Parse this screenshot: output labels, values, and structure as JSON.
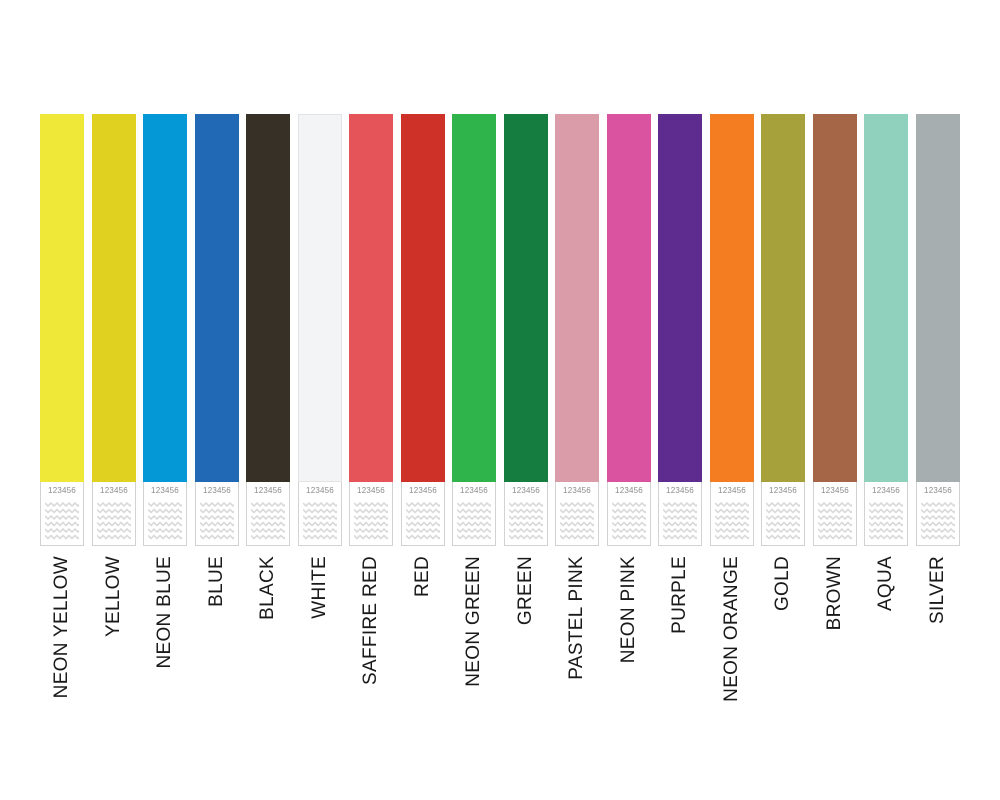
{
  "wristbands": [
    {
      "name": "NEON YELLOW",
      "color": "#efe838",
      "number": "123456"
    },
    {
      "name": "YELLOW",
      "color": "#e0d121",
      "number": "123456"
    },
    {
      "name": "NEON BLUE",
      "color": "#0499d6",
      "number": "123456"
    },
    {
      "name": "BLUE",
      "color": "#2169b5",
      "number": "123456"
    },
    {
      "name": "BLACK",
      "color": "#363026",
      "number": "123456"
    },
    {
      "name": "WHITE",
      "color": "#f3f4f6",
      "number": "123456"
    },
    {
      "name": "SAFFIRE RED",
      "color": "#e45458",
      "number": "123456"
    },
    {
      "name": "RED",
      "color": "#cd3128",
      "number": "123456"
    },
    {
      "name": "NEON GREEN",
      "color": "#2fb34b",
      "number": "123456"
    },
    {
      "name": "GREEN",
      "color": "#167d41",
      "number": "123456"
    },
    {
      "name": "PASTEL PINK",
      "color": "#da9ca9",
      "number": "123456"
    },
    {
      "name": "NEON PINK",
      "color": "#d953a1",
      "number": "123456"
    },
    {
      "name": "PURPLE",
      "color": "#5e2c8e",
      "number": "123456"
    },
    {
      "name": "NEON ORANGE",
      "color": "#f47d22",
      "number": "123456"
    },
    {
      "name": "GOLD",
      "color": "#a7a13b",
      "number": "123456"
    },
    {
      "name": "BROWN",
      "color": "#a46647",
      "number": "123456"
    },
    {
      "name": "AQUA",
      "color": "#8fd1bd",
      "number": "123456"
    },
    {
      "name": "SILVER",
      "color": "#a7aeaf",
      "number": "123456"
    }
  ]
}
